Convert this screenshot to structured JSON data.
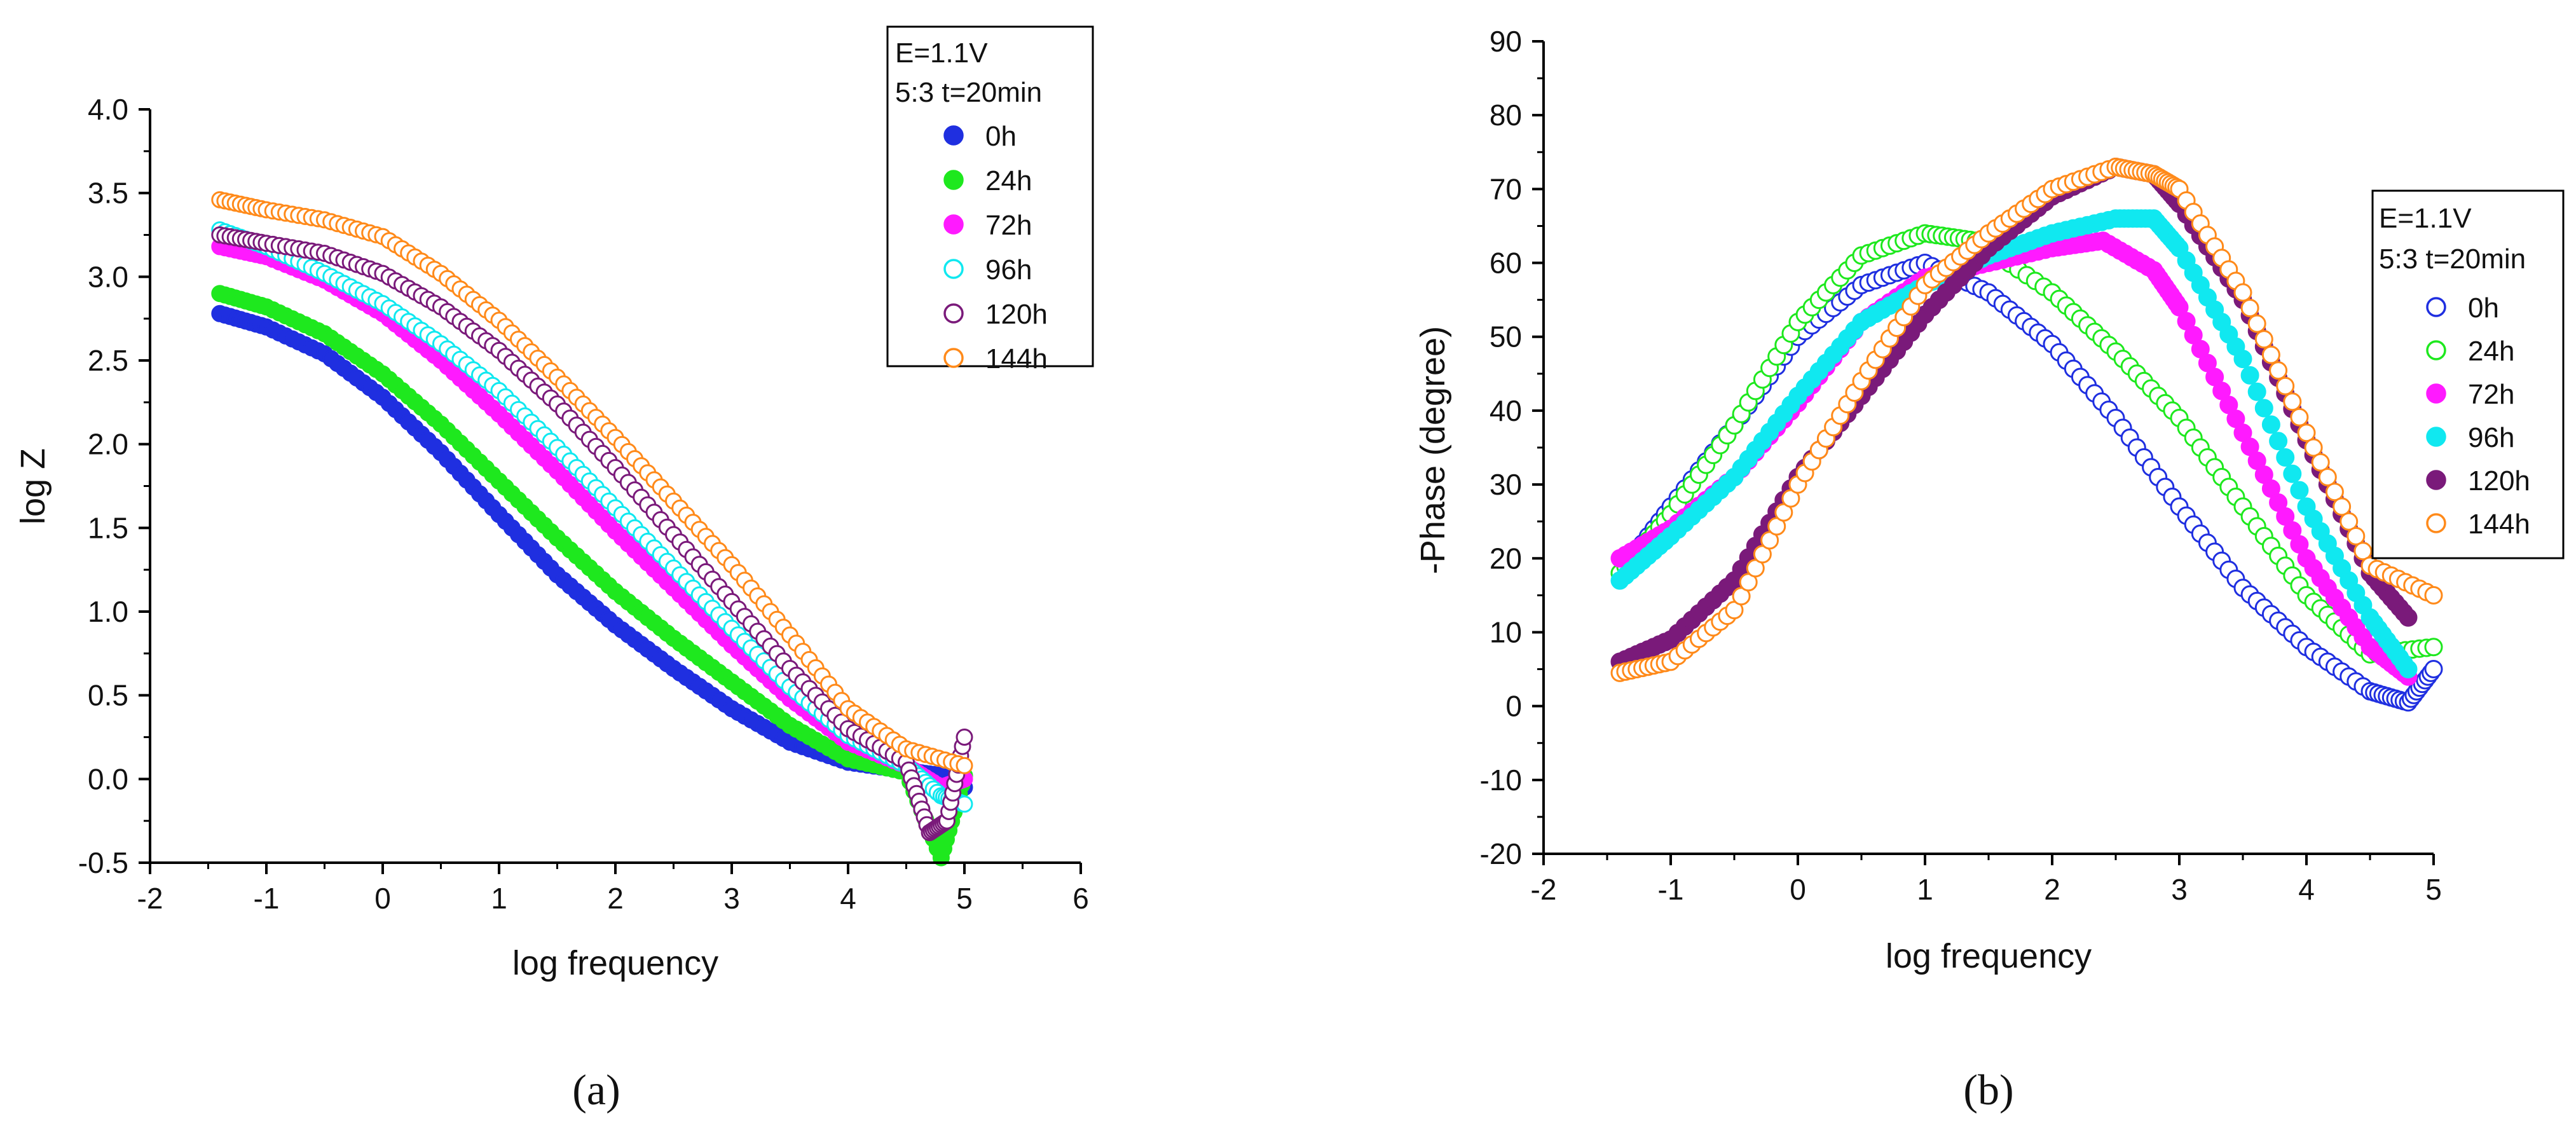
{
  "colors": {
    "axis": "#000000",
    "0h": "#1f2fe0",
    "24h": "#1ee81e",
    "72h": "#ff1aff",
    "96h": "#10e8f0",
    "120h": "#7a1a7a",
    "144h": "#ff8a1a"
  },
  "chart_data": [
    {
      "type": "scatter",
      "panel_label": "(a)",
      "title": "",
      "xlabel": "log frequency",
      "ylabel": "log Z",
      "xlim": [
        -2,
        6
      ],
      "ylim": [
        -0.5,
        4.0
      ],
      "xticks": [
        -2,
        -1,
        0,
        1,
        2,
        3,
        4,
        5,
        6
      ],
      "xtick_labels": [
        "-2",
        "-1",
        "0",
        "1",
        "2",
        "3",
        "4",
        "5",
        "6"
      ],
      "yticks": [
        -0.5,
        0.0,
        0.5,
        1.0,
        1.5,
        2.0,
        2.5,
        3.0,
        3.5,
        4.0
      ],
      "ytick_labels": [
        "-0.5",
        "0.0",
        "0.5",
        "1.0",
        "1.5",
        "2.0",
        "2.5",
        "3.0",
        "3.5",
        "4.0"
      ],
      "legend_title": [
        "E=1.1V",
        "5:3 t=20min"
      ],
      "legend_position": "top-right",
      "series": [
        {
          "name": "0h",
          "color_key": "0h",
          "filled": true,
          "points": [
            [
              -1.4,
              2.78
            ],
            [
              -1.0,
              2.7
            ],
            [
              -0.5,
              2.54
            ],
            [
              0,
              2.28
            ],
            [
              0.5,
              1.95
            ],
            [
              1,
              1.58
            ],
            [
              1.5,
              1.22
            ],
            [
              2,
              0.92
            ],
            [
              2.5,
              0.66
            ],
            [
              3,
              0.42
            ],
            [
              3.5,
              0.22
            ],
            [
              4,
              0.1
            ],
            [
              4.5,
              0.05
            ],
            [
              4.8,
              0.02
            ],
            [
              5,
              -0.05
            ]
          ]
        },
        {
          "name": "24h",
          "color_key": "24h",
          "filled": true,
          "points": [
            [
              -1.4,
              2.9
            ],
            [
              -1.0,
              2.82
            ],
            [
              -0.5,
              2.66
            ],
            [
              0,
              2.42
            ],
            [
              0.5,
              2.12
            ],
            [
              1,
              1.78
            ],
            [
              1.5,
              1.44
            ],
            [
              2,
              1.12
            ],
            [
              2.5,
              0.84
            ],
            [
              3,
              0.58
            ],
            [
              3.5,
              0.32
            ],
            [
              4,
              0.12
            ],
            [
              4.5,
              0.04
            ],
            [
              4.8,
              -0.47
            ],
            [
              5,
              0.02
            ]
          ]
        },
        {
          "name": "72h",
          "color_key": "72h",
          "filled": true,
          "points": [
            [
              -1.4,
              3.18
            ],
            [
              -1.0,
              3.12
            ],
            [
              -0.5,
              2.98
            ],
            [
              0,
              2.78
            ],
            [
              0.5,
              2.5
            ],
            [
              1,
              2.18
            ],
            [
              1.5,
              1.84
            ],
            [
              2,
              1.48
            ],
            [
              2.5,
              1.14
            ],
            [
              3,
              0.8
            ],
            [
              3.5,
              0.48
            ],
            [
              4,
              0.22
            ],
            [
              4.5,
              0.08
            ],
            [
              4.8,
              -0.05
            ],
            [
              5,
              0.0
            ]
          ]
        },
        {
          "name": "96h",
          "color_key": "96h",
          "filled": false,
          "points": [
            [
              -1.4,
              3.28
            ],
            [
              -1.0,
              3.18
            ],
            [
              -0.5,
              3.02
            ],
            [
              0,
              2.84
            ],
            [
              0.5,
              2.6
            ],
            [
              1,
              2.32
            ],
            [
              1.5,
              1.98
            ],
            [
              2,
              1.62
            ],
            [
              2.5,
              1.26
            ],
            [
              3,
              0.9
            ],
            [
              3.5,
              0.55
            ],
            [
              4,
              0.26
            ],
            [
              4.5,
              0.08
            ],
            [
              4.8,
              -0.1
            ],
            [
              5,
              -0.15
            ]
          ]
        },
        {
          "name": "120h",
          "color_key": "120h",
          "filled": false,
          "points": [
            [
              -1.4,
              3.25
            ],
            [
              -1.0,
              3.2
            ],
            [
              -0.5,
              3.14
            ],
            [
              0,
              3.02
            ],
            [
              0.5,
              2.82
            ],
            [
              1,
              2.56
            ],
            [
              1.5,
              2.24
            ],
            [
              2,
              1.86
            ],
            [
              2.5,
              1.46
            ],
            [
              3,
              1.06
            ],
            [
              3.5,
              0.66
            ],
            [
              4,
              0.3
            ],
            [
              4.5,
              0.1
            ],
            [
              4.7,
              -0.32
            ],
            [
              4.85,
              -0.25
            ],
            [
              5,
              0.25
            ]
          ]
        },
        {
          "name": "144h",
          "color_key": "144h",
          "filled": false,
          "points": [
            [
              -1.4,
              3.46
            ],
            [
              -1.0,
              3.4
            ],
            [
              -0.5,
              3.34
            ],
            [
              0,
              3.24
            ],
            [
              0.5,
              3.02
            ],
            [
              1,
              2.74
            ],
            [
              1.5,
              2.4
            ],
            [
              2,
              2.04
            ],
            [
              2.5,
              1.66
            ],
            [
              3,
              1.28
            ],
            [
              3.5,
              0.86
            ],
            [
              4,
              0.42
            ],
            [
              4.5,
              0.18
            ],
            [
              5,
              0.08
            ]
          ]
        }
      ]
    },
    {
      "type": "scatter",
      "panel_label": "(b)",
      "title": "",
      "xlabel": "log frequency",
      "ylabel": "-Phase (degree)",
      "xlim": [
        -2,
        5
      ],
      "ylim": [
        -20,
        90
      ],
      "xticks": [
        -2,
        -1,
        0,
        1,
        2,
        3,
        4,
        5
      ],
      "xtick_labels": [
        "-2",
        "-1",
        "0",
        "1",
        "2",
        "3",
        "4",
        "5"
      ],
      "yticks": [
        -20,
        -10,
        0,
        10,
        20,
        30,
        40,
        50,
        60,
        70,
        80,
        90
      ],
      "ytick_labels": [
        "-20",
        "-10",
        "0",
        "10",
        "20",
        "30",
        "40",
        "50",
        "60",
        "70",
        "80",
        "90"
      ],
      "legend_title": [
        "E=1.1V",
        "5:3 t=20min"
      ],
      "legend_position": "right",
      "series": [
        {
          "name": "0h",
          "color_key": "0h",
          "filled": false,
          "points": [
            [
              -1.4,
              18
            ],
            [
              -1,
              27
            ],
            [
              -0.5,
              38
            ],
            [
              0,
              50
            ],
            [
              0.5,
              57
            ],
            [
              1,
              60
            ],
            [
              1.5,
              56
            ],
            [
              2,
              49
            ],
            [
              2.5,
              39
            ],
            [
              3,
              27
            ],
            [
              3.5,
              16
            ],
            [
              4,
              8
            ],
            [
              4.5,
              2
            ],
            [
              4.8,
              0.5
            ],
            [
              5,
              5
            ]
          ]
        },
        {
          "name": "24h",
          "color_key": "24h",
          "filled": false,
          "points": [
            [
              -1.4,
              18
            ],
            [
              -1,
              26
            ],
            [
              -0.5,
              38
            ],
            [
              0,
              52
            ],
            [
              0.5,
              61
            ],
            [
              1,
              64
            ],
            [
              1.4,
              63
            ],
            [
              2,
              56
            ],
            [
              2.5,
              48
            ],
            [
              3,
              39
            ],
            [
              3.5,
              27
            ],
            [
              4,
              15
            ],
            [
              4.5,
              7
            ],
            [
              5,
              8
            ]
          ]
        },
        {
          "name": "72h",
          "color_key": "72h",
          "filled": true,
          "points": [
            [
              -1.4,
              20
            ],
            [
              -1,
              24
            ],
            [
              -0.5,
              31
            ],
            [
              0,
              41
            ],
            [
              0.5,
              52
            ],
            [
              1,
              58
            ],
            [
              1.5,
              60
            ],
            [
              2,
              62
            ],
            [
              2.4,
              63
            ],
            [
              2.8,
              59
            ],
            [
              3,
              54
            ],
            [
              3.5,
              37
            ],
            [
              4,
              20
            ],
            [
              4.5,
              8
            ],
            [
              4.8,
              4
            ]
          ]
        },
        {
          "name": "96h",
          "color_key": "96h",
          "filled": true,
          "points": [
            [
              -1.4,
              17
            ],
            [
              -1,
              23
            ],
            [
              -0.5,
              31
            ],
            [
              0,
              42
            ],
            [
              0.5,
              52
            ],
            [
              1,
              57
            ],
            [
              1.5,
              61
            ],
            [
              2,
              64
            ],
            [
              2.5,
              66
            ],
            [
              2.8,
              66
            ],
            [
              3,
              62
            ],
            [
              3.5,
              47
            ],
            [
              4,
              27
            ],
            [
              4.5,
              12
            ],
            [
              4.8,
              5
            ]
          ]
        },
        {
          "name": "120h",
          "color_key": "120h",
          "filled": true,
          "points": [
            [
              -1.4,
              6
            ],
            [
              -1,
              9
            ],
            [
              -0.5,
              17
            ],
            [
              0,
              31
            ],
            [
              0.5,
              42
            ],
            [
              1,
              53
            ],
            [
              1.5,
              62
            ],
            [
              2,
              69
            ],
            [
              2.5,
              73
            ],
            [
              2.8,
              72
            ],
            [
              3,
              68
            ],
            [
              3.5,
              55
            ],
            [
              4,
              36
            ],
            [
              4.5,
              18
            ],
            [
              4.8,
              12
            ]
          ]
        },
        {
          "name": "144h",
          "color_key": "144h",
          "filled": false,
          "points": [
            [
              -1.4,
              4.5
            ],
            [
              -1,
              6
            ],
            [
              -0.5,
              13
            ],
            [
              0,
              30
            ],
            [
              0.5,
              44
            ],
            [
              1,
              57
            ],
            [
              1.5,
              64
            ],
            [
              2,
              70
            ],
            [
              2.5,
              73
            ],
            [
              2.8,
              72
            ],
            [
              3,
              70
            ],
            [
              3.5,
              56
            ],
            [
              4,
              37
            ],
            [
              4.5,
              19
            ],
            [
              5,
              15
            ]
          ]
        }
      ]
    }
  ]
}
